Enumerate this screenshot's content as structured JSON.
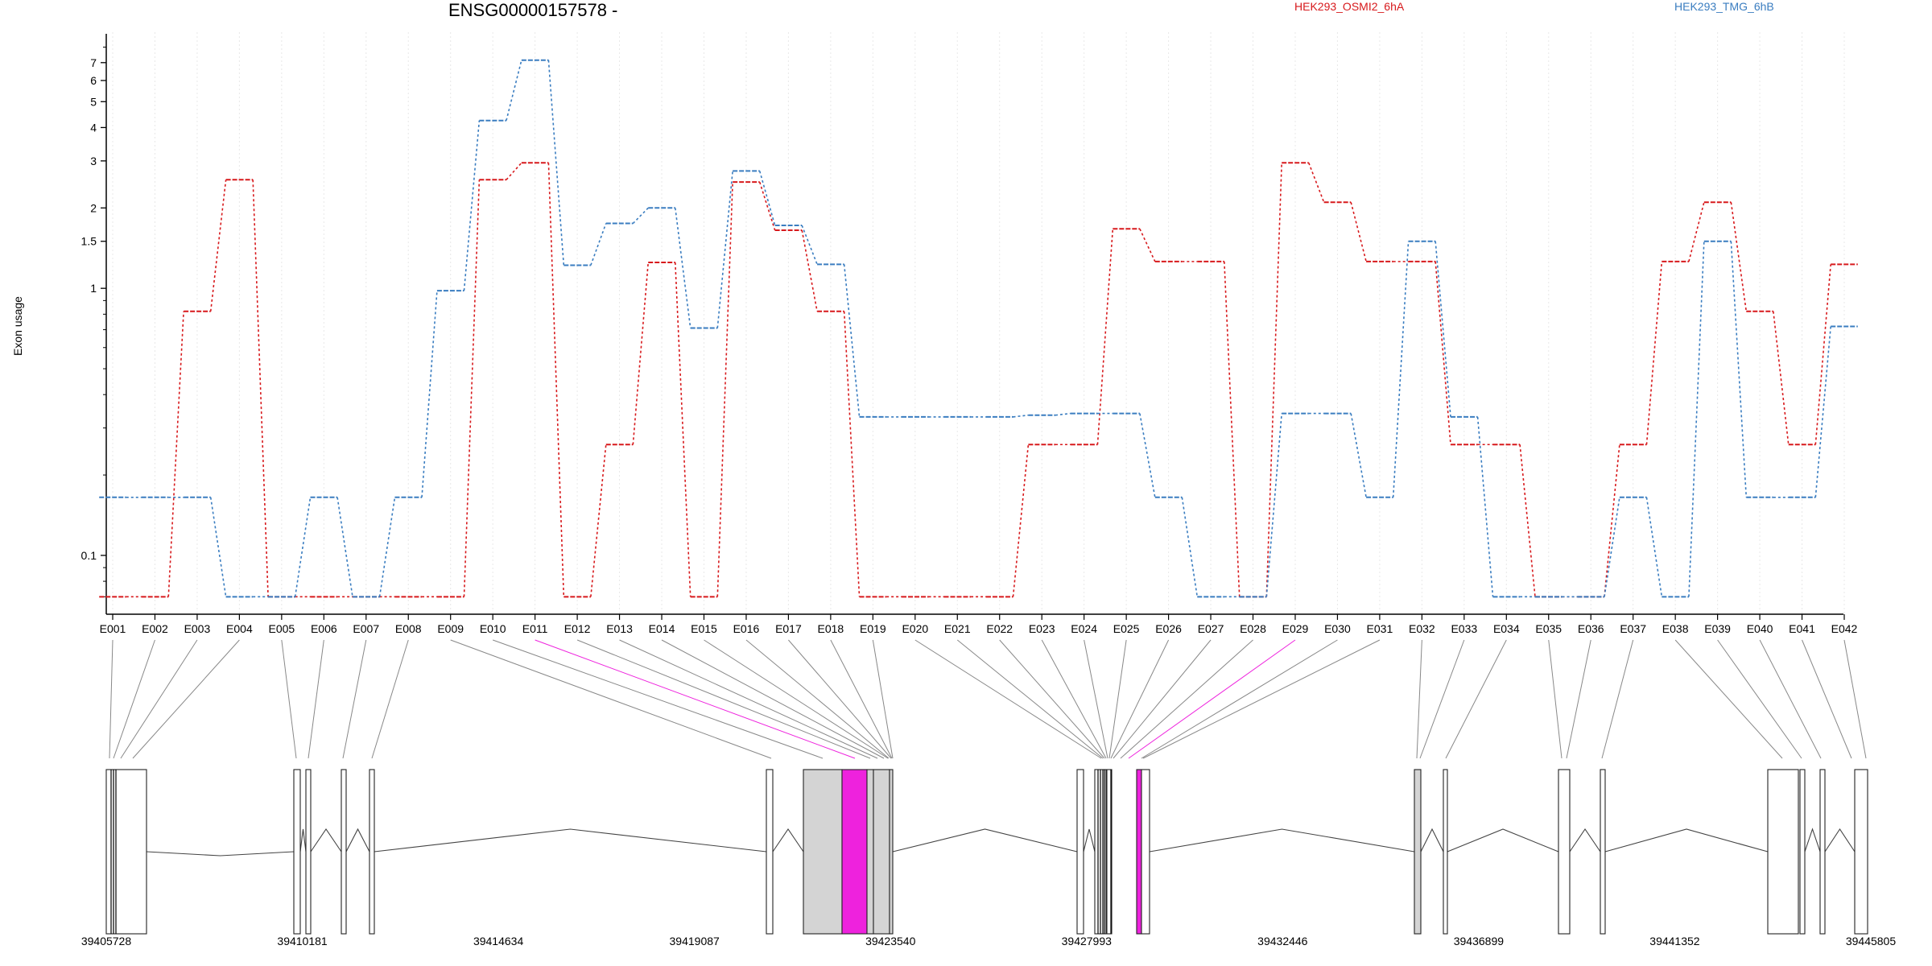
{
  "chart_data": {
    "type": "line",
    "title": "ENSG00000157578 -",
    "xlabel": "",
    "ylabel": "Exon usage",
    "y_scale": "log",
    "ylim": [
      0.065,
      8.2
    ],
    "y_ticks": [
      0.1,
      1,
      1.5,
      2,
      3,
      4,
      5,
      6,
      7
    ],
    "y_tick_labels": [
      "0.1",
      "1",
      "1.5",
      "2",
      "3",
      "4",
      "5",
      "6",
      "7"
    ],
    "grid": "vertical dotted lines at each exon",
    "legend_placement": "top",
    "categories": [
      "E001",
      "E002",
      "E003",
      "E004",
      "E005",
      "E006",
      "E007",
      "E008",
      "E009",
      "E010",
      "E011",
      "E012",
      "E013",
      "E014",
      "E015",
      "E016",
      "E017",
      "E018",
      "E019",
      "E020",
      "E021",
      "E022",
      "E023",
      "E024",
      "E025",
      "E026",
      "E027",
      "E028",
      "E029",
      "E030",
      "E031",
      "E032",
      "E033",
      "E034",
      "E035",
      "E036",
      "E037",
      "E038",
      "E039",
      "E040",
      "E041",
      "E042"
    ],
    "series": [
      {
        "name": "HEK293_OSMI2_6hA",
        "color": "#d7191c",
        "values": [
          0.07,
          0.07,
          0.82,
          2.55,
          0.07,
          0.07,
          0.07,
          0.07,
          0.07,
          2.55,
          2.95,
          0.07,
          0.26,
          1.25,
          0.07,
          2.5,
          1.65,
          0.82,
          0.07,
          0.07,
          0.07,
          0.07,
          0.26,
          0.26,
          1.67,
          1.26,
          1.26,
          0.07,
          2.95,
          2.1,
          1.26,
          1.26,
          0.26,
          0.26,
          0.07,
          0.07,
          0.26,
          1.26,
          2.1,
          0.82,
          0.26,
          1.23
        ]
      },
      {
        "name": "HEK293_TMG_6hB",
        "color": "#3a7dc0",
        "values": [
          0.165,
          0.165,
          0.165,
          0.07,
          0.07,
          0.165,
          0.07,
          0.165,
          0.98,
          4.25,
          7.15,
          1.22,
          1.75,
          2.0,
          0.71,
          2.75,
          1.72,
          1.23,
          0.33,
          0.33,
          0.33,
          0.33,
          0.335,
          0.34,
          0.34,
          0.165,
          0.07,
          0.07,
          0.34,
          0.34,
          0.165,
          1.5,
          0.33,
          0.07,
          0.07,
          0.07,
          0.165,
          0.07,
          1.5,
          0.165,
          0.165,
          0.72
        ]
      }
    ],
    "gene_model": {
      "coordinate_labels": [
        "39405728",
        "39410181",
        "39414634",
        "39419087",
        "39423540",
        "39427993",
        "39432446",
        "39436899",
        "39441352",
        "39445805"
      ],
      "highlight_color": "#ee22dd",
      "highlighted_exons": [
        "E011",
        "E029"
      ]
    }
  }
}
